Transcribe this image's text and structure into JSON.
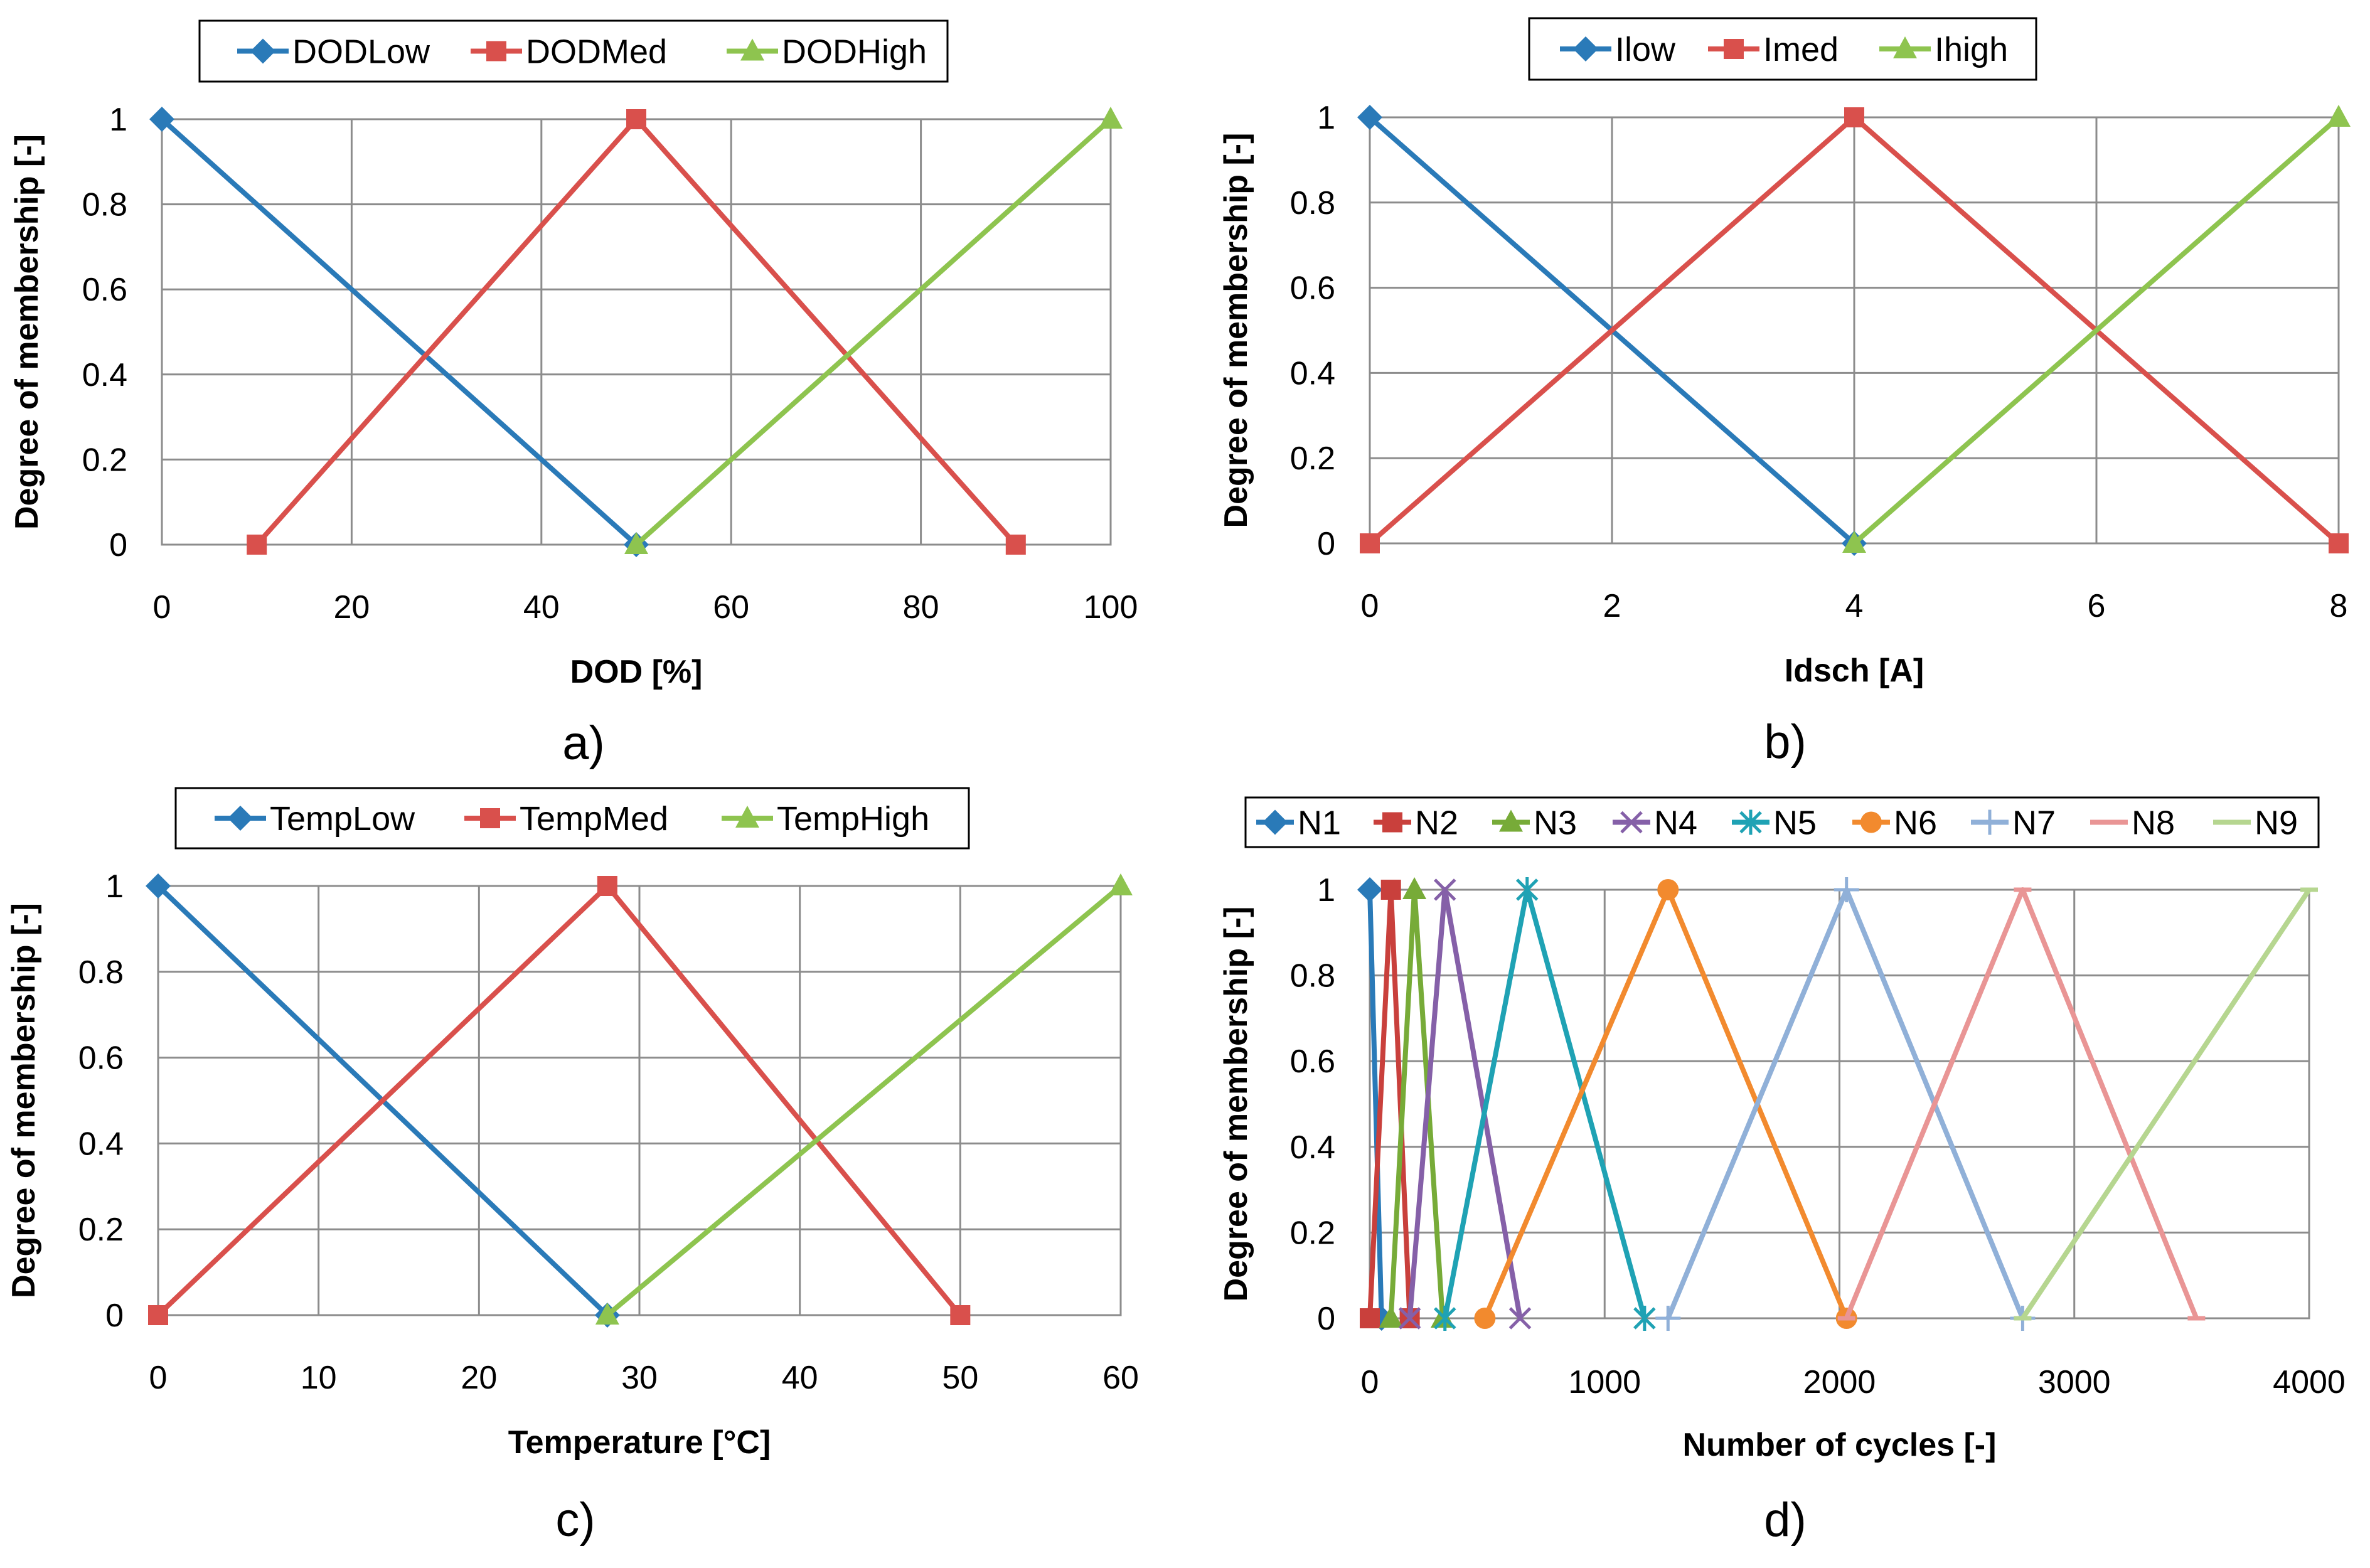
{
  "chart_data": [
    {
      "type": "line",
      "panel_label": "a)",
      "xlabel": "DOD [%]",
      "ylabel": "Degree of membership [-]",
      "xlim": [
        0,
        100
      ],
      "ylim": [
        0,
        1
      ],
      "xticks": [
        0,
        20,
        40,
        60,
        80,
        100
      ],
      "yticks": [
        0,
        0.2,
        0.4,
        0.6,
        0.8,
        1
      ],
      "ytick_labels": [
        "0",
        "0.2",
        "0.4",
        "0.6",
        "0.8",
        "1"
      ],
      "legend_placement": "top-center",
      "series": [
        {
          "name": "DODLow",
          "color": "#2a7ab8",
          "marker": "diamond",
          "x": [
            0,
            50
          ],
          "y": [
            1,
            0
          ]
        },
        {
          "name": "DODMed",
          "color": "#d9504c",
          "marker": "square",
          "x": [
            10,
            50,
            90
          ],
          "y": [
            0,
            1,
            0
          ]
        },
        {
          "name": "DODHigh",
          "color": "#8ec44f",
          "marker": "triangle",
          "x": [
            50,
            100
          ],
          "y": [
            0,
            1
          ]
        }
      ]
    },
    {
      "type": "line",
      "panel_label": "b)",
      "xlabel": "Idsch [A]",
      "ylabel": "Degree of membership [-]",
      "xlim": [
        0,
        8
      ],
      "ylim": [
        0,
        1
      ],
      "xticks": [
        0,
        2,
        4,
        6,
        8
      ],
      "yticks": [
        0,
        0.2,
        0.4,
        0.6,
        0.8,
        1
      ],
      "ytick_labels": [
        "0",
        "0.2",
        "0.4",
        "0.6",
        "0.8",
        "1"
      ],
      "legend_placement": "top-center",
      "series": [
        {
          "name": "Ilow",
          "color": "#2a7ab8",
          "marker": "diamond",
          "x": [
            0,
            4
          ],
          "y": [
            1,
            0
          ]
        },
        {
          "name": "Imed",
          "color": "#d9504c",
          "marker": "square",
          "x": [
            0,
            4,
            8
          ],
          "y": [
            0,
            1,
            0
          ]
        },
        {
          "name": "Ihigh",
          "color": "#8ec44f",
          "marker": "triangle",
          "x": [
            4,
            8
          ],
          "y": [
            0,
            1
          ]
        }
      ]
    },
    {
      "type": "line",
      "panel_label": "c)",
      "xlabel": "Temperature  [°C]",
      "ylabel": "Degree of membership [-]",
      "xlim": [
        0,
        60
      ],
      "ylim": [
        0,
        1
      ],
      "xticks": [
        0,
        10,
        20,
        30,
        40,
        50,
        60
      ],
      "yticks": [
        0,
        0.2,
        0.4,
        0.6,
        0.8,
        1
      ],
      "ytick_labels": [
        "0",
        "0.2",
        "0.4",
        "0.6",
        "0.8",
        "1"
      ],
      "legend_placement": "top-center",
      "series": [
        {
          "name": "TempLow",
          "color": "#2a7ab8",
          "marker": "diamond",
          "x": [
            0,
            28
          ],
          "y": [
            1,
            0
          ]
        },
        {
          "name": "TempMed",
          "color": "#d9504c",
          "marker": "square",
          "x": [
            0,
            28,
            50
          ],
          "y": [
            0,
            1,
            0
          ]
        },
        {
          "name": "TempHigh",
          "color": "#8ec44f",
          "marker": "triangle",
          "x": [
            28,
            60
          ],
          "y": [
            0,
            1
          ]
        }
      ]
    },
    {
      "type": "line",
      "panel_label": "d)",
      "xlabel": "Number of cycles [-]",
      "ylabel": "Degree of membership [-]",
      "xlim": [
        0,
        4000
      ],
      "ylim": [
        0,
        1
      ],
      "xticks": [
        0,
        1000,
        2000,
        3000,
        4000
      ],
      "yticks": [
        0,
        0.2,
        0.4,
        0.6,
        0.8,
        1
      ],
      "ytick_labels": [
        "0",
        "0.2",
        "0.4",
        "0.6",
        "0.8",
        "1"
      ],
      "legend_placement": "top-center",
      "series": [
        {
          "name": "N1",
          "color": "#2a7ab8",
          "marker": "diamond",
          "x": [
            0,
            50
          ],
          "y": [
            1,
            0
          ]
        },
        {
          "name": "N2",
          "color": "#c9403c",
          "marker": "square",
          "x": [
            0,
            90,
            170
          ],
          "y": [
            0,
            1,
            0
          ]
        },
        {
          "name": "N3",
          "color": "#77ab38",
          "marker": "triangle",
          "x": [
            90,
            190,
            310
          ],
          "y": [
            0,
            1,
            0
          ]
        },
        {
          "name": "N4",
          "color": "#8560a8",
          "marker": "x",
          "x": [
            170,
            320,
            640
          ],
          "y": [
            0,
            1,
            0
          ]
        },
        {
          "name": "N5",
          "color": "#1fa2b4",
          "marker": "star",
          "x": [
            320,
            670,
            1170
          ],
          "y": [
            0,
            1,
            0
          ]
        },
        {
          "name": "N6",
          "color": "#f28a2e",
          "marker": "circle",
          "x": [
            490,
            1270,
            2030
          ],
          "y": [
            0,
            1,
            0
          ]
        },
        {
          "name": "N7",
          "color": "#90b0d8",
          "marker": "plus",
          "x": [
            1270,
            2030,
            2780
          ],
          "y": [
            0,
            1,
            0
          ]
        },
        {
          "name": "N8",
          "color": "#e99595",
          "marker": "dash",
          "x": [
            2030,
            2780,
            3520
          ],
          "y": [
            0,
            1,
            0
          ]
        },
        {
          "name": "N9",
          "color": "#b6d690",
          "marker": "dash",
          "x": [
            2780,
            4000
          ],
          "y": [
            0,
            1
          ]
        }
      ]
    }
  ]
}
